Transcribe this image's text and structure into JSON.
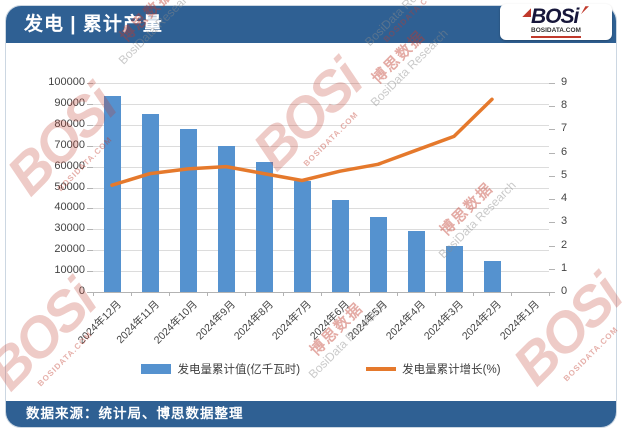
{
  "header": {
    "title": "发电 | 累计产量"
  },
  "logo": {
    "name": "BOSi",
    "site": "BOSIDATA.COM"
  },
  "footer": {
    "source": "数据来源：统计局、博思数据整理"
  },
  "watermark": {
    "brand": "BOSi",
    "brand_cn": "博思数据",
    "research": "BosiData Research",
    "site": "BOSIDATA.COM"
  },
  "colors": {
    "chrome_blue": "#2f6093",
    "bar_blue": "#5592cf",
    "line_orange": "#e5792c",
    "gridline": "#dcdcdc",
    "axis": "#b3b3b3",
    "watermark_red": "#c0392b",
    "watermark_gray": "#8a8a8a"
  },
  "chart_data": {
    "type": "bar",
    "subtype": "bar+line dual axis",
    "categories": [
      "2024年12月",
      "2024年11月",
      "2024年10月",
      "2024年9月",
      "2024年8月",
      "2024年7月",
      "2024年6月",
      "2024年5月",
      "2024年4月",
      "2024年3月",
      "2024年2月",
      "2024年1月"
    ],
    "series": [
      {
        "name": "发电量累计值(亿千瓦时)",
        "type": "bar",
        "axis": "left",
        "color": "#5592cf",
        "values": [
          94000,
          85000,
          78000,
          70000,
          62000,
          53000,
          44000,
          36000,
          29000,
          22000,
          15000,
          null
        ]
      },
      {
        "name": "发电量累计增长(%)",
        "type": "line",
        "axis": "right",
        "color": "#e5792c",
        "values": [
          4.6,
          5.1,
          5.3,
          5.4,
          5.1,
          4.8,
          5.2,
          5.5,
          6.1,
          6.7,
          8.3,
          null
        ]
      }
    ],
    "left_axis": {
      "min": 0,
      "max": 100000,
      "step": 10000
    },
    "right_axis": {
      "min": 0,
      "max": 9,
      "step": 1
    },
    "grid": true,
    "legend_position": "bottom"
  }
}
